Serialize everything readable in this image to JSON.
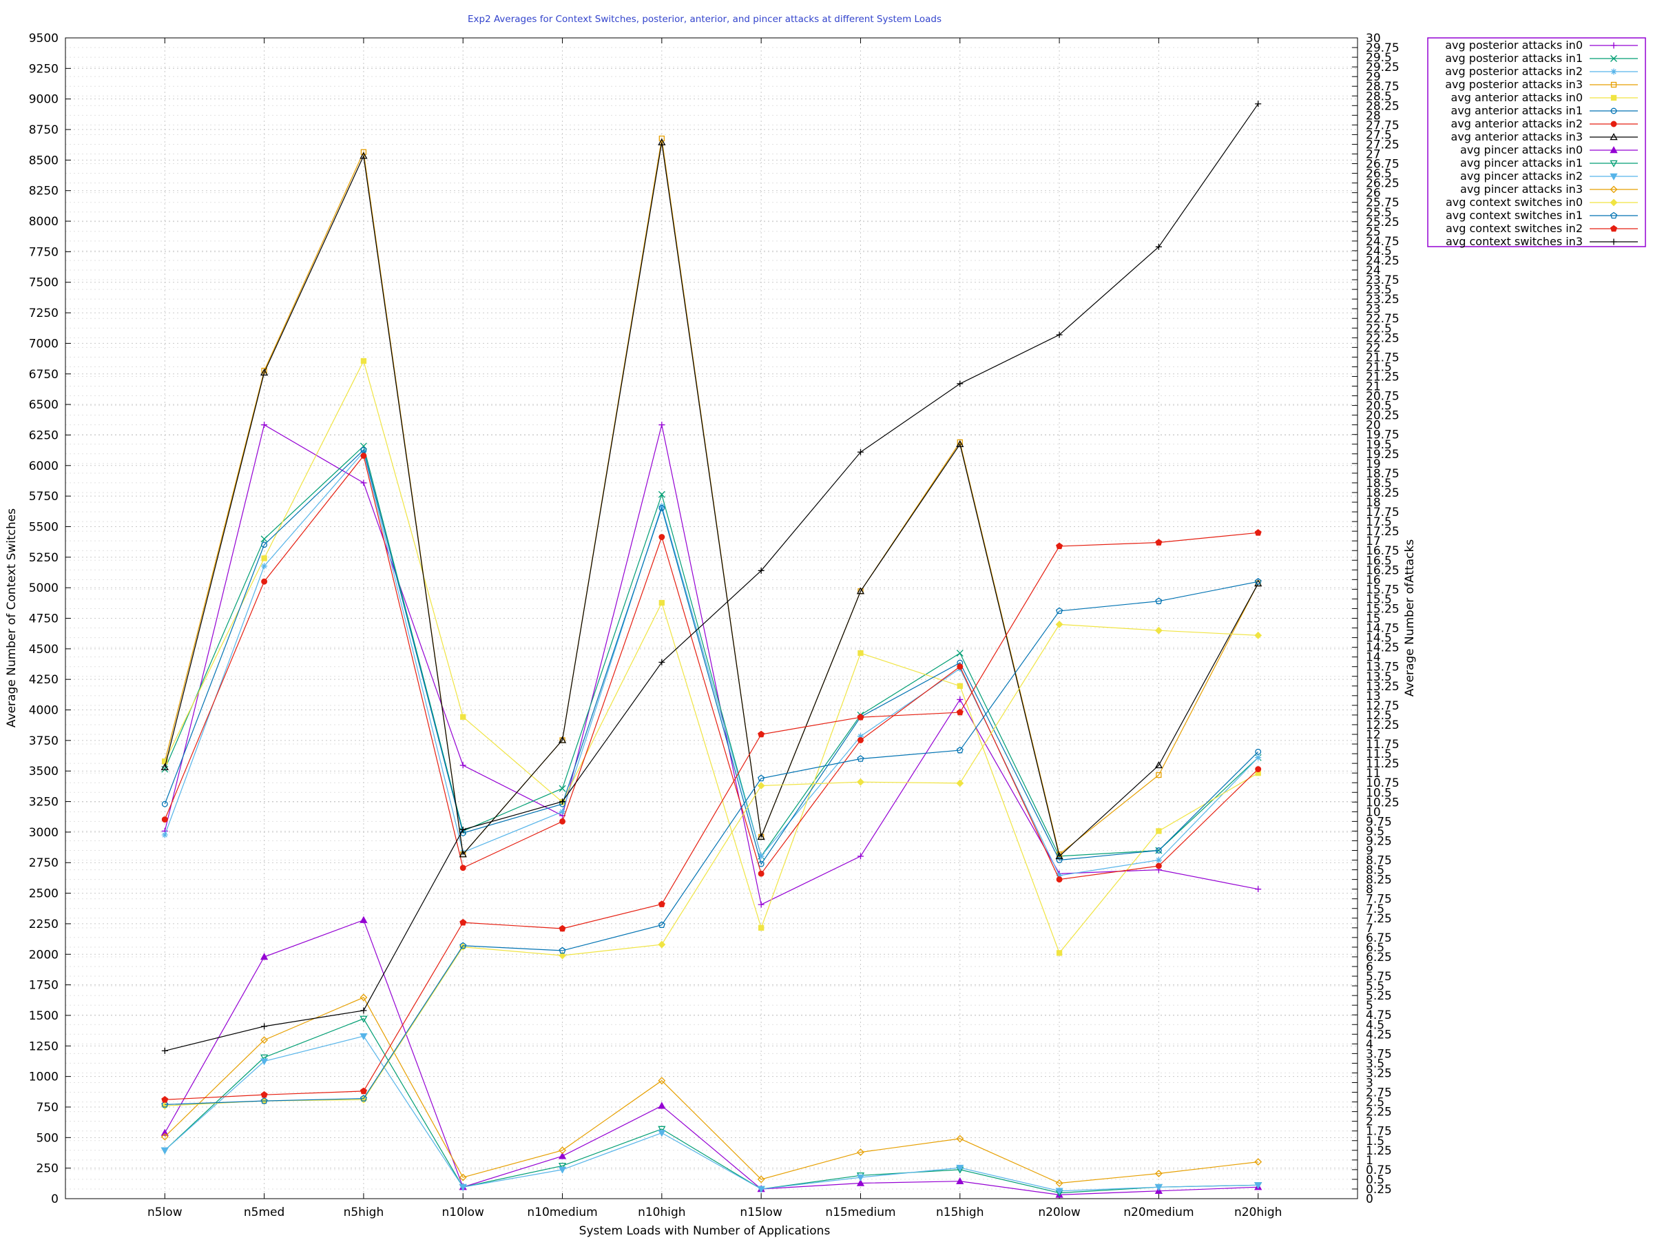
{
  "chart_data": {
    "type": "line",
    "title": "Exp2 Averages for Context Switches, posterior, anterior, and pincer attacks at different System Loads",
    "xlabel": "System Loads with Number of Applications",
    "ylabel": "Average Number of Context Switches",
    "y2label": "Average Number ofAttacks",
    "ylim": [
      0,
      9500
    ],
    "y2lim": [
      0,
      30
    ],
    "yticks": [
      "0",
      "250",
      "500",
      "750",
      "1000",
      "1250",
      "1500",
      "1750",
      "2000",
      "2250",
      "2500",
      "2750",
      "3000",
      "3250",
      "3500",
      "3750",
      "4000",
      "4250",
      "4500",
      "4750",
      "5000",
      "5250",
      "5500",
      "5750",
      "6000",
      "6250",
      "6500",
      "6750",
      "7000",
      "7250",
      "7500",
      "7750",
      "8000",
      "8250",
      "8500",
      "8750",
      "9000",
      "9250",
      "9500"
    ],
    "y2ticks": [
      "0",
      "0.25",
      "0.5",
      "0.75",
      "1",
      "1.25",
      "1.5",
      "1.75",
      "2",
      "2.25",
      "2.5",
      "2.75",
      "3",
      "3.25",
      "3.5",
      "3.75",
      "4",
      "4.25",
      "4.5",
      "4.75",
      "5",
      "5.25",
      "5.5",
      "5.75",
      "6",
      "6.25",
      "6.5",
      "6.75",
      "7",
      "7.25",
      "7.5",
      "7.75",
      "8",
      "8.25",
      "8.5",
      "8.75",
      "9",
      "9.25",
      "9.5",
      "9.75",
      "10",
      "10.25",
      "10.5",
      "10.75",
      "11",
      "11.25",
      "11.5",
      "11.75",
      "12",
      "12.25",
      "12.5",
      "12.75",
      "13",
      "13.25",
      "13.5",
      "13.75",
      "14",
      "14.25",
      "14.5",
      "14.75",
      "15",
      "15.25",
      "15.5",
      "15.75",
      "16",
      "16.25",
      "16.5",
      "16.75",
      "17",
      "17.25",
      "17.5",
      "17.75",
      "18",
      "18.25",
      "18.5",
      "18.75",
      "19",
      "19.25",
      "19.5",
      "19.75",
      "20",
      "20.25",
      "20.5",
      "20.75",
      "21",
      "21.25",
      "21.5",
      "21.75",
      "22",
      "22.25",
      "22.5",
      "22.75",
      "23",
      "23.25",
      "23.5",
      "23.75",
      "24",
      "24.25",
      "24.5",
      "24.75",
      "25",
      "25.25",
      "25.5",
      "25.75",
      "26",
      "26.25",
      "26.5",
      "26.75",
      "27",
      "27.25",
      "27.5",
      "27.75",
      "28",
      "28.25",
      "28.5",
      "28.75",
      "29",
      "29.25",
      "29.5",
      "29.75",
      "30"
    ],
    "categories": [
      "n5low",
      "n5med",
      "n5high",
      "n10low",
      "n10medium",
      "n10high",
      "n15low",
      "n15medium",
      "n15high",
      "n20low",
      "n20medium",
      "n20high"
    ],
    "grid": true,
    "legend_position": "outside-top-right",
    "series": [
      {
        "name": "avg posterior attacks in0",
        "color": "#9400d3",
        "marker": "plus",
        "axis": "y2",
        "values": [
          9.5,
          20,
          18.5,
          11.2,
          9.9,
          20,
          7.6,
          8.85,
          12.9,
          8.4,
          8.5,
          8.0
        ]
      },
      {
        "name": "avg posterior attacks in1",
        "color": "#009e73",
        "marker": "x",
        "axis": "y2",
        "values": [
          11.1,
          17.05,
          19.45,
          9.5,
          10.6,
          18.2,
          8.85,
          12.5,
          14.1,
          8.85,
          9.0,
          11.4
        ]
      },
      {
        "name": "avg posterior attacks in2",
        "color": "#56b4e9",
        "marker": "star",
        "axis": "y2",
        "values": [
          9.4,
          16.35,
          19.3,
          8.95,
          10.0,
          17.9,
          8.85,
          11.95,
          13.7,
          8.35,
          8.75,
          11.4
        ]
      },
      {
        "name": "avg posterior attacks in3",
        "color": "#e69f00",
        "marker": "square",
        "axis": "y2",
        "values": [
          11.3,
          21.4,
          27.05,
          8.9,
          11.85,
          27.4,
          9.35,
          15.7,
          19.55,
          8.9,
          10.95,
          15.9
        ]
      },
      {
        "name": "avg anterior attacks in0",
        "color": "#f0e442",
        "marker": "square-filled",
        "axis": "y2",
        "values": [
          11.3,
          16.55,
          21.65,
          12.45,
          10.25,
          15.4,
          7.0,
          14.1,
          13.25,
          6.35,
          9.5,
          11.0
        ]
      },
      {
        "name": "avg anterior attacks in1",
        "color": "#0072b2",
        "marker": "circle",
        "axis": "y2",
        "values": [
          10.2,
          16.9,
          19.35,
          9.45,
          10.2,
          17.85,
          8.65,
          12.45,
          13.85,
          8.75,
          9.0,
          11.55
        ]
      },
      {
        "name": "avg anterior attacks in2",
        "color": "#e51e10",
        "marker": "circle-filled",
        "axis": "y2",
        "values": [
          9.8,
          15.95,
          19.2,
          8.55,
          9.75,
          17.1,
          8.4,
          11.85,
          13.75,
          8.25,
          8.6,
          11.1
        ]
      },
      {
        "name": "avg anterior attacks in3",
        "color": "#000000",
        "marker": "triangle",
        "axis": "y2",
        "values": [
          11.15,
          21.35,
          26.95,
          8.9,
          11.85,
          27.3,
          9.35,
          15.7,
          19.5,
          8.85,
          11.2,
          15.9
        ]
      },
      {
        "name": "avg pincer attacks in0",
        "color": "#9400d3",
        "marker": "triangle-filled",
        "axis": "y2",
        "values": [
          1.7,
          6.25,
          7.2,
          0.3,
          1.1,
          2.4,
          0.25,
          0.4,
          0.45,
          0.1,
          0.2,
          0.3
        ]
      },
      {
        "name": "avg pincer attacks in1",
        "color": "#009e73",
        "marker": "nabla",
        "axis": "y2",
        "values": [
          1.25,
          3.65,
          4.65,
          0.3,
          0.85,
          1.8,
          0.25,
          0.6,
          0.75,
          0.15,
          0.3,
          0.35
        ]
      },
      {
        "name": "avg pincer attacks in2",
        "color": "#56b4e9",
        "marker": "nabla-filled",
        "axis": "y2",
        "values": [
          1.25,
          3.55,
          4.2,
          0.3,
          0.75,
          1.7,
          0.25,
          0.55,
          0.8,
          0.2,
          0.3,
          0.35
        ]
      },
      {
        "name": "avg pincer attacks in3",
        "color": "#e69f00",
        "marker": "diamond",
        "axis": "y2",
        "values": [
          1.6,
          4.1,
          5.2,
          0.55,
          1.25,
          3.05,
          0.5,
          1.2,
          1.55,
          0.4,
          0.65,
          0.95
        ]
      },
      {
        "name": "avg context switches in0",
        "color": "#f0e442",
        "marker": "diamond-filled",
        "axis": "y",
        "values": [
          760,
          800,
          810,
          2060,
          1990,
          2080,
          3380,
          3410,
          3400,
          4700,
          4650,
          4610
        ]
      },
      {
        "name": "avg context switches in1",
        "color": "#0072b2",
        "marker": "pentagon",
        "axis": "y",
        "values": [
          770,
          800,
          820,
          2070,
          2030,
          2240,
          3440,
          3600,
          3670,
          4810,
          4890,
          5050
        ]
      },
      {
        "name": "avg context switches in2",
        "color": "#e51e10",
        "marker": "pentagon-filled",
        "axis": "y",
        "values": [
          810,
          850,
          880,
          2260,
          2210,
          2410,
          3800,
          3940,
          3980,
          5340,
          5370,
          5450
        ]
      },
      {
        "name": "avg context switches in3",
        "color": "#000000",
        "marker": "plus",
        "axis": "y",
        "values": [
          1210,
          1410,
          1540,
          3020,
          3250,
          4390,
          5140,
          6110,
          6670,
          7070,
          7790,
          8960
        ]
      }
    ]
  }
}
